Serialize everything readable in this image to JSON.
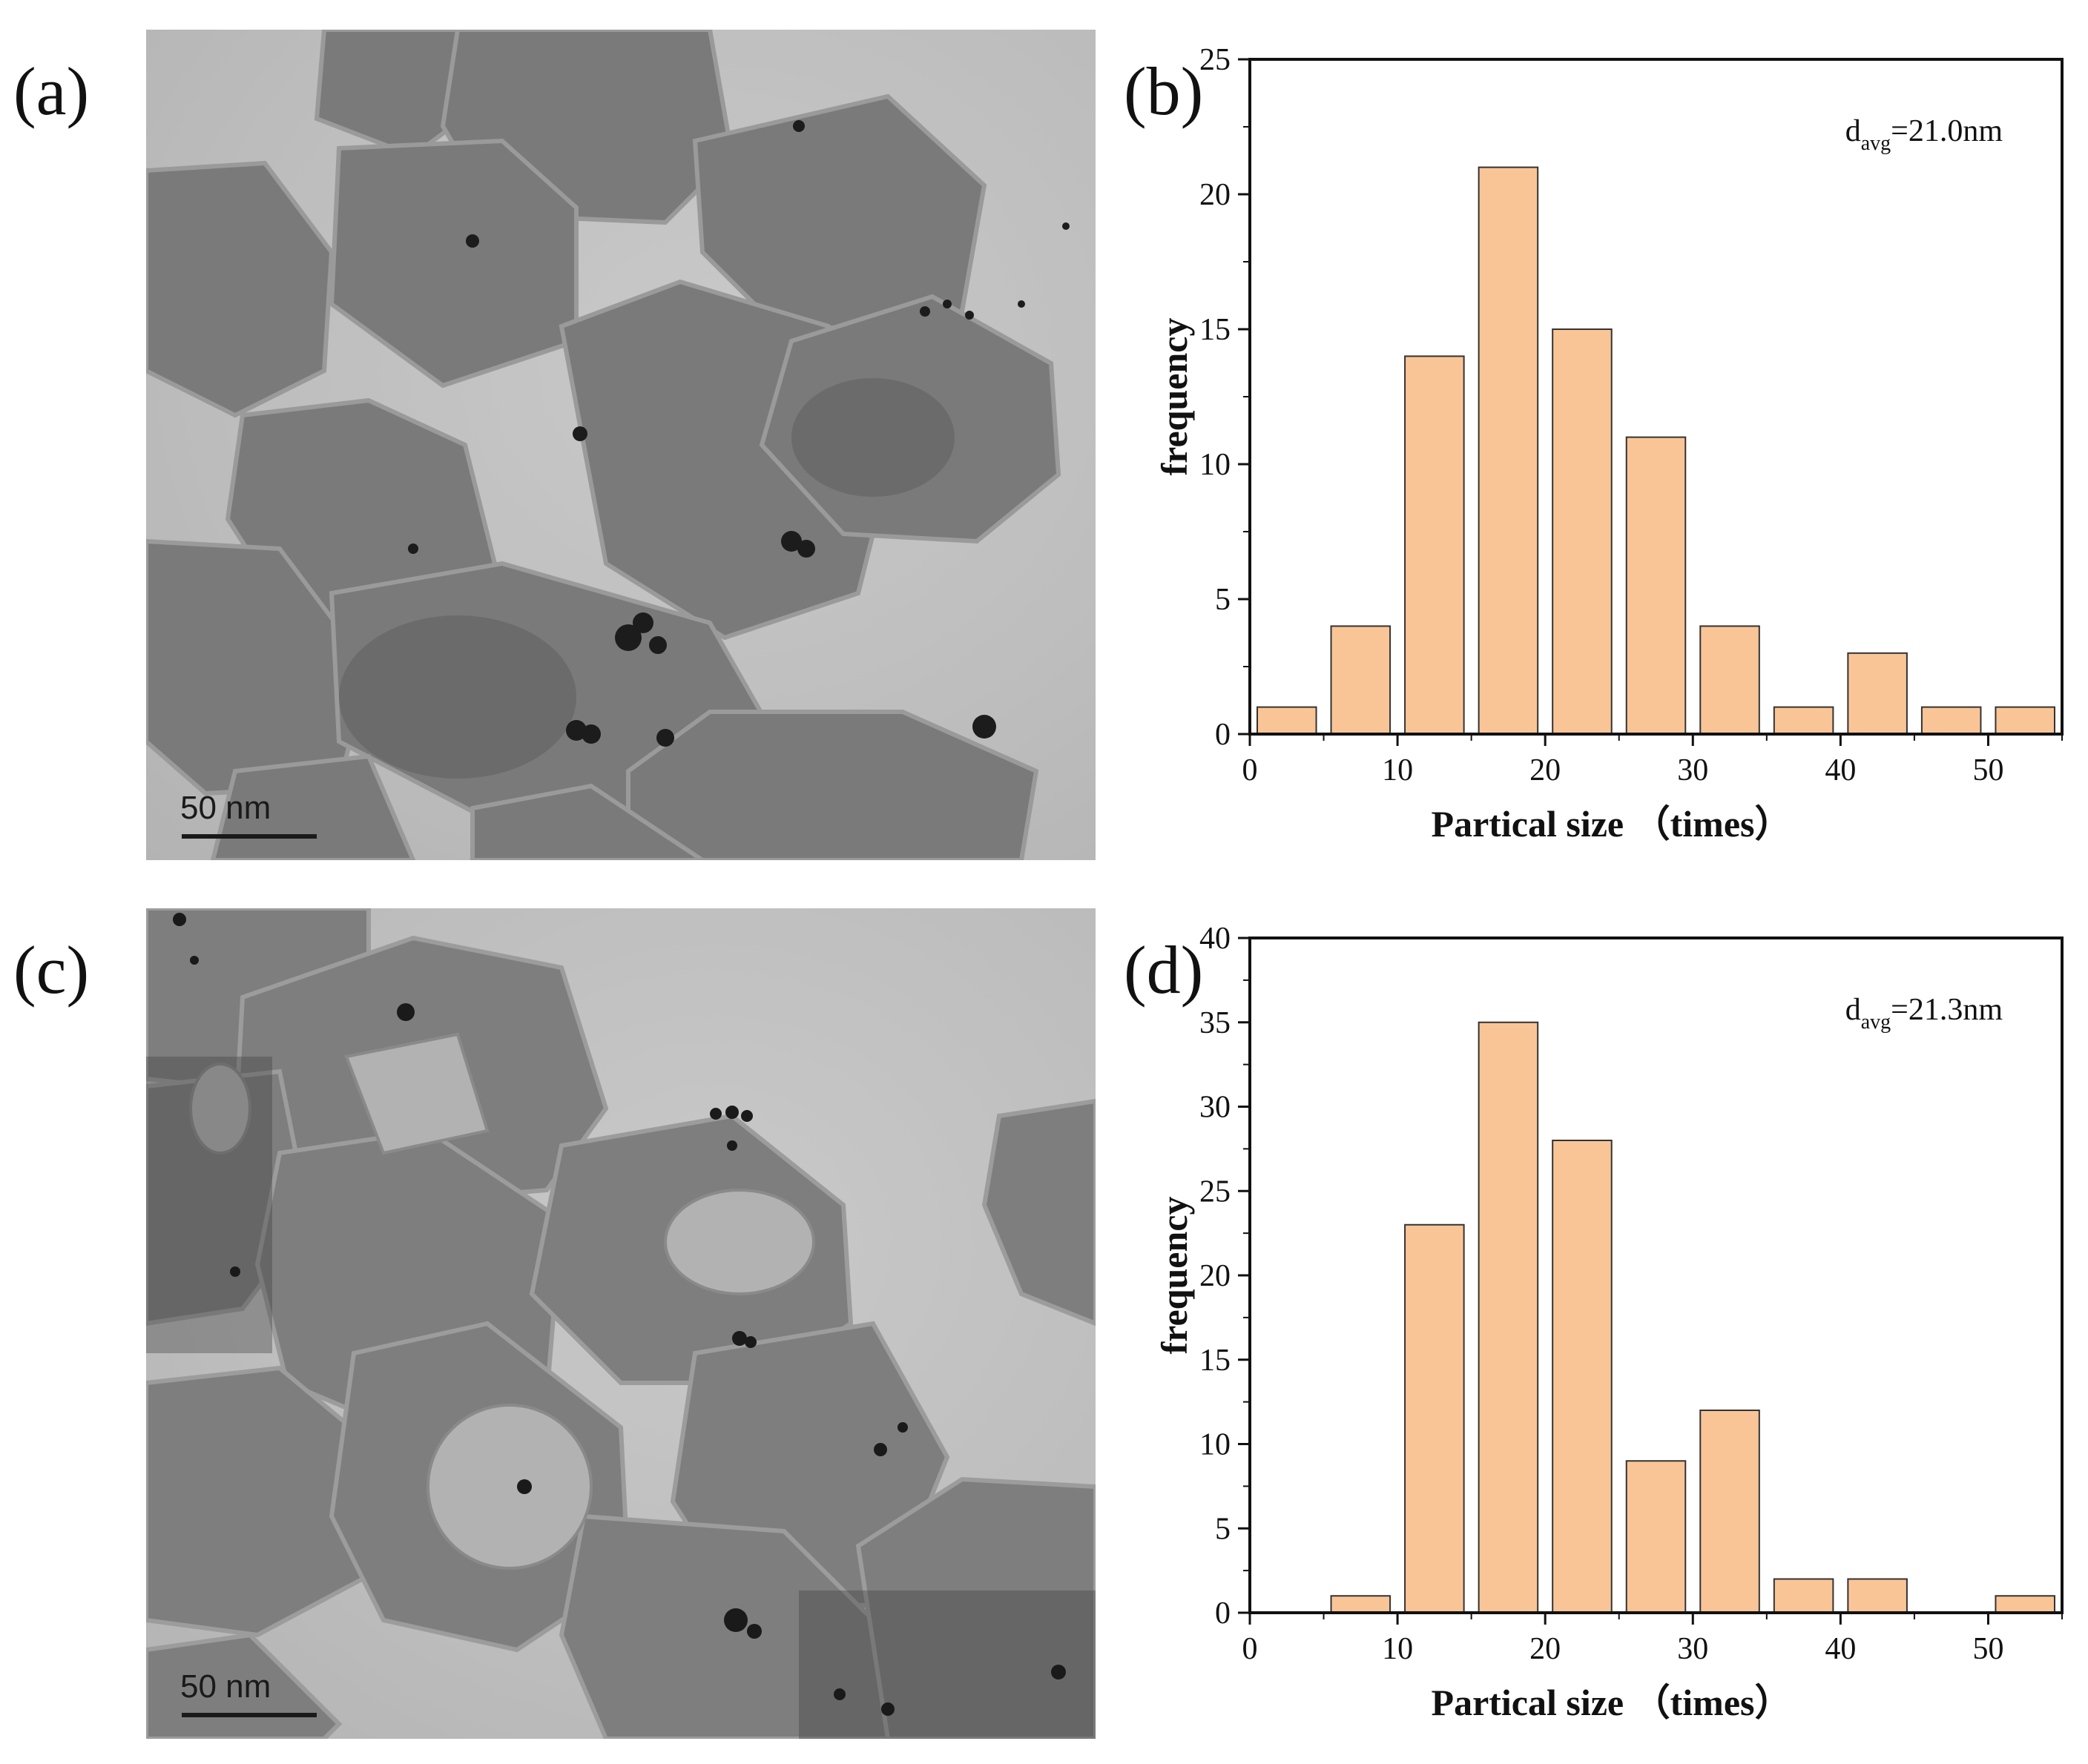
{
  "panels": {
    "a": {
      "label": "(a)",
      "scale_bar": "50 nm"
    },
    "b": {
      "label": "(b)"
    },
    "c": {
      "label": "(c)",
      "scale_bar": "50 nm"
    },
    "d": {
      "label": "(d)"
    }
  },
  "chart_data": [
    {
      "id": "b",
      "type": "bar",
      "annotation": {
        "main": "d",
        "sub": "avg",
        "rest": "=21.0nm"
      },
      "xlabel": "Partical size （times）",
      "ylabel": "frequency",
      "xlim": [
        0,
        55
      ],
      "ylim": [
        0,
        25
      ],
      "xticks": [
        0,
        10,
        20,
        30,
        40,
        50
      ],
      "yticks": [
        0,
        5,
        10,
        15,
        20,
        25
      ],
      "bin_width": 5,
      "bar_color": "#fac596",
      "bars": [
        {
          "x": 2.5,
          "value": 1
        },
        {
          "x": 7.5,
          "value": 4
        },
        {
          "x": 12.5,
          "value": 14
        },
        {
          "x": 17.5,
          "value": 21
        },
        {
          "x": 22.5,
          "value": 15
        },
        {
          "x": 27.5,
          "value": 11
        },
        {
          "x": 32.5,
          "value": 4
        },
        {
          "x": 37.5,
          "value": 1
        },
        {
          "x": 42.5,
          "value": 3
        },
        {
          "x": 47.5,
          "value": 1
        },
        {
          "x": 52.5,
          "value": 1
        }
      ]
    },
    {
      "id": "d",
      "type": "bar",
      "annotation": {
        "main": "d",
        "sub": "avg",
        "rest": "=21.3nm"
      },
      "xlabel": "Partical size （times）",
      "ylabel": "frequency",
      "xlim": [
        0,
        55
      ],
      "ylim": [
        0,
        40
      ],
      "xticks": [
        0,
        10,
        20,
        30,
        40,
        50
      ],
      "yticks": [
        0,
        5,
        10,
        15,
        20,
        25,
        30,
        35,
        40
      ],
      "bin_width": 5,
      "bar_color": "#fac596",
      "bars": [
        {
          "x": 2.5,
          "value": 0
        },
        {
          "x": 7.5,
          "value": 1
        },
        {
          "x": 12.5,
          "value": 23
        },
        {
          "x": 17.5,
          "value": 35
        },
        {
          "x": 22.5,
          "value": 28
        },
        {
          "x": 27.5,
          "value": 9
        },
        {
          "x": 32.5,
          "value": 12
        },
        {
          "x": 37.5,
          "value": 2
        },
        {
          "x": 42.5,
          "value": 2
        },
        {
          "x": 47.5,
          "value": 0
        },
        {
          "x": 52.5,
          "value": 1
        }
      ]
    }
  ]
}
